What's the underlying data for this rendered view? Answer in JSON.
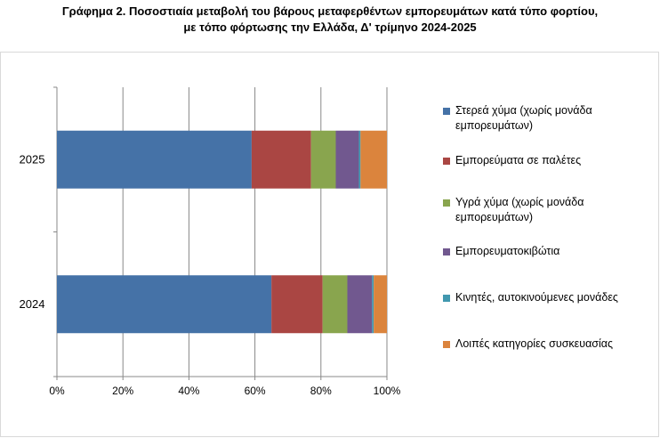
{
  "title_line1": "Γράφημα 2. Ποσοστιαία μεταβολή του βάρους μεταφερθέντων εμπορευμάτων κατά τύπο φορτίου,",
  "title_line2": "με τόπο φόρτωσης την Ελλάδα, Δ' τρίμηνο 2024-2025",
  "colors": {
    "grid": "#888888",
    "axis": "#888888"
  },
  "chart_data": {
    "type": "bar",
    "orientation": "horizontal",
    "stacked": "percent",
    "categories": [
      "2025",
      "2024"
    ],
    "xlim": [
      0,
      100
    ],
    "xticks": [
      "0%",
      "20%",
      "40%",
      "60%",
      "80%",
      "100%"
    ],
    "grid": true,
    "legend_position": "right",
    "series": [
      {
        "name": "Στερεά χύμα (χωρίς μονάδα εμπορευμάτων)",
        "color": "#4572A7",
        "values": [
          59,
          65
        ]
      },
      {
        "name": "Εμπορεύματα σε παλέτες",
        "color": "#AA4643",
        "values": [
          18,
          15.5
        ]
      },
      {
        "name": "Υγρά χύμα (χωρίς μονάδα εμπορευμάτων)",
        "color": "#89A54E",
        "values": [
          7.5,
          7.5
        ]
      },
      {
        "name": "Εμπορευματοκιβώτια",
        "color": "#71588F",
        "values": [
          7,
          7.5
        ]
      },
      {
        "name": "Κινητές, αυτοκινούμενες μονάδες",
        "color": "#4198AF",
        "values": [
          0.5,
          0.5
        ]
      },
      {
        "name": "Λοιπές κατηγορίες συσκευασίας",
        "color": "#DB843D",
        "values": [
          8,
          4
        ]
      }
    ]
  }
}
